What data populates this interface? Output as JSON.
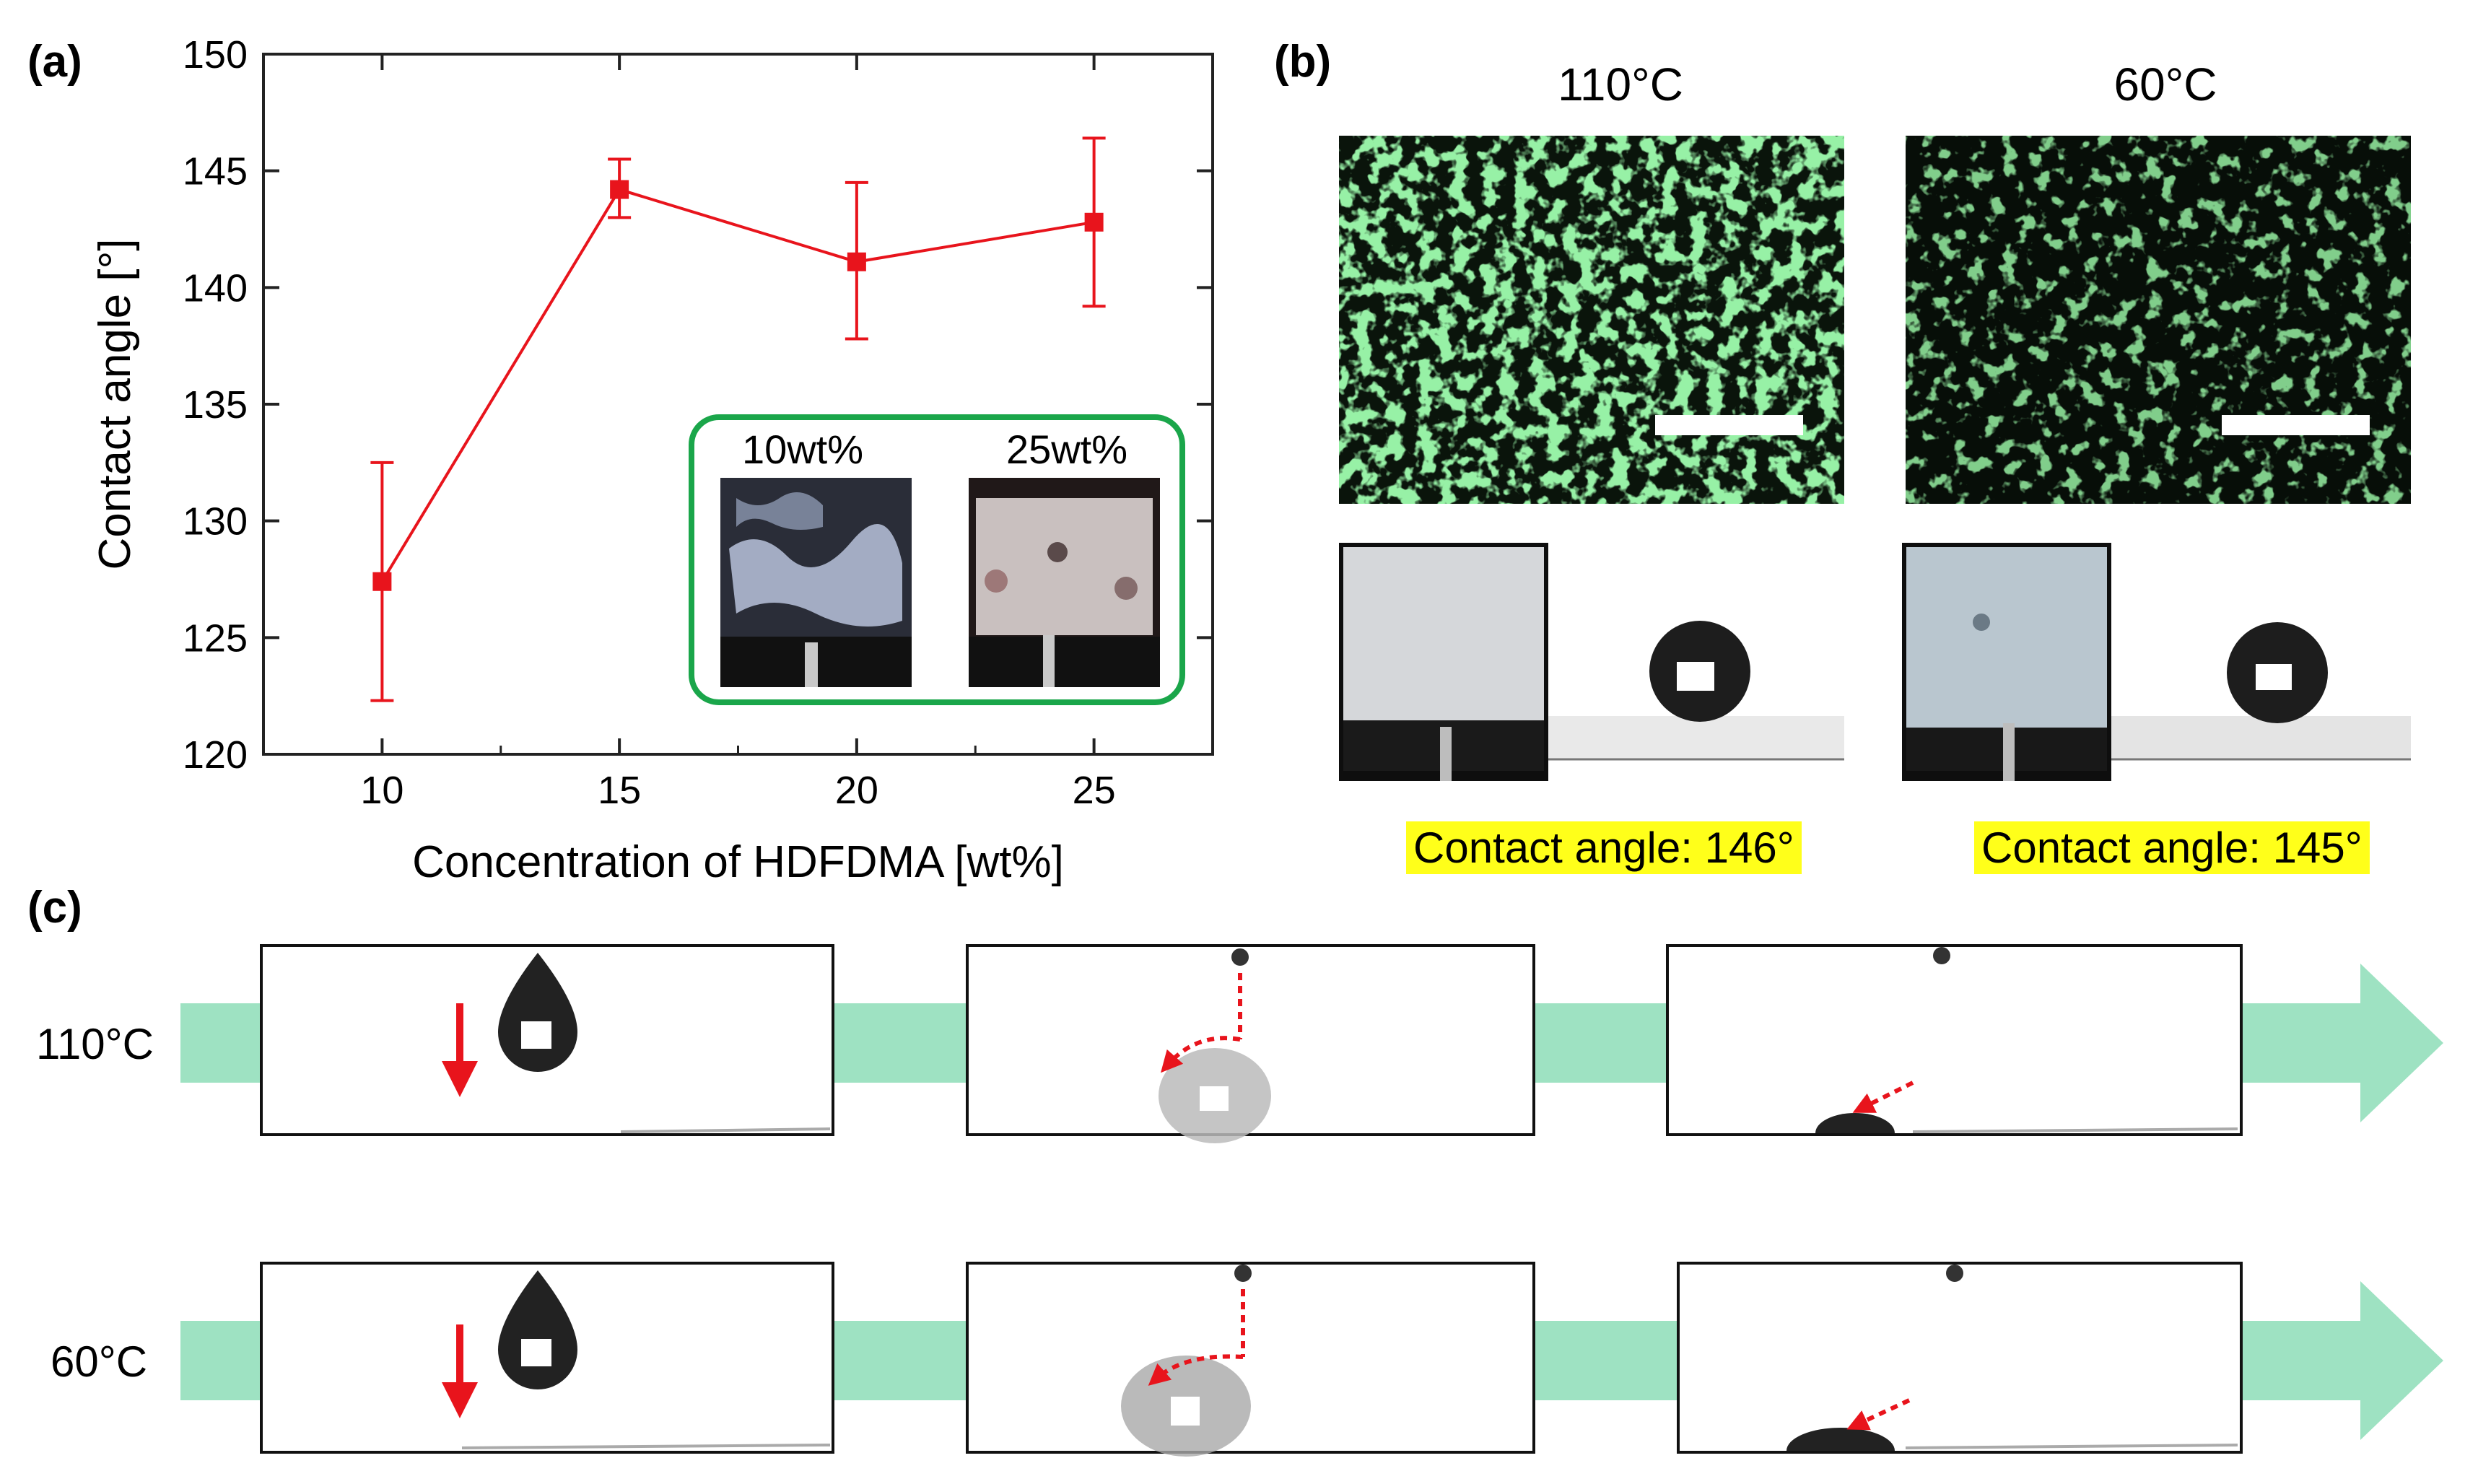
{
  "panel_a": {
    "label": "(a)",
    "inset": {
      "left_label": "10wt%",
      "right_label": "25wt%",
      "border_color": "#1aa64a"
    }
  },
  "panel_b": {
    "label": "(b)",
    "left_title": "110°C",
    "right_title": "60°C",
    "left_caption": "Contact angle: 146°",
    "right_caption": "Contact angle: 145°",
    "fluorescence_color": "#4fe060"
  },
  "panel_c": {
    "label": "(c)",
    "row_top_label": "110°C",
    "row_bottom_label": "60°C",
    "arrow_color": "#9ee2c2",
    "annotation_color": "#e8141c"
  },
  "chart_data": {
    "type": "line",
    "xlabel": "Concentration of HDFDMA [wt%]",
    "ylabel": "Contact angle [°]",
    "xlim": [
      7.5,
      27.5
    ],
    "ylim": [
      120,
      150
    ],
    "xticks": [
      10,
      15,
      20,
      25
    ],
    "yticks": [
      120,
      125,
      130,
      135,
      140,
      145,
      150
    ],
    "grid": false,
    "series": [
      {
        "color": "#e8141c",
        "x": [
          10,
          15,
          20,
          25
        ],
        "y": [
          127.4,
          144.2,
          141.1,
          142.8
        ],
        "err_low": [
          122.3,
          143.0,
          137.8,
          139.2
        ],
        "err_high": [
          132.5,
          145.5,
          144.5,
          146.4
        ]
      }
    ]
  }
}
